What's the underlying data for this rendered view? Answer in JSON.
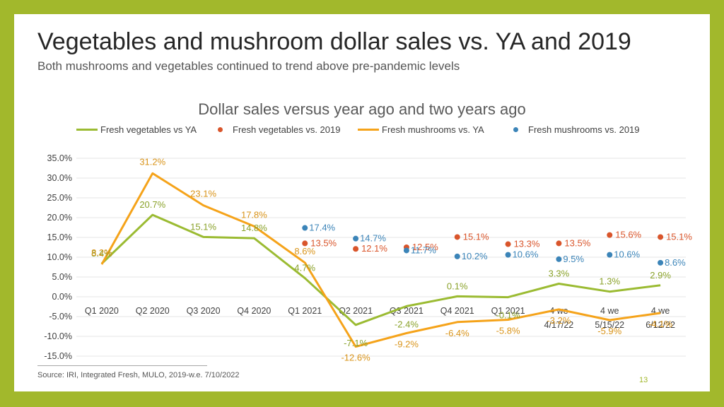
{
  "slide": {
    "title": "Vegetables and mushroom dollar sales vs. YA and 2019",
    "subtitle": "Both mushrooms and vegetables continued to trend above pre-pandemic levels",
    "source": "Source: IRI, Integrated Fresh, MULO, 2019-w.e. 7/10/2022",
    "page_number": "13"
  },
  "chart_data": {
    "type": "line",
    "title": "Dollar sales versus year ago and two years ago",
    "legend_position": "top",
    "grid": true,
    "ylim": [
      -15,
      35
    ],
    "y_ticks": [
      "35.0%",
      "30.0%",
      "25.0%",
      "20.0%",
      "15.0%",
      "10.0%",
      "5.0%",
      "0.0%",
      "-5.0%",
      "-10.0%",
      "-15.0%"
    ],
    "categories": [
      [
        "Q1 2020"
      ],
      [
        "Q2 2020"
      ],
      [
        "Q3 2020"
      ],
      [
        "Q4 2020"
      ],
      [
        "Q1 2021"
      ],
      [
        "Q2 2021"
      ],
      [
        "Q3 2021"
      ],
      [
        "Q4 2021"
      ],
      [
        "Q1 2021"
      ],
      [
        "4 we",
        "4/17/22"
      ],
      [
        "4 we",
        "5/15/22"
      ],
      [
        "4 we",
        "6/12/22"
      ]
    ],
    "series": [
      {
        "name": "Fresh vegetables vs YA",
        "kind": "line",
        "color": "#9bbb32",
        "label_color": "#8aa22a",
        "values": [
          8.4,
          20.7,
          15.1,
          14.8,
          4.7,
          -7.1,
          -2.4,
          0.1,
          -0.1,
          3.3,
          1.3,
          2.9
        ],
        "labels": [
          "8.4%",
          "20.7%",
          "15.1%",
          "14.8%",
          "4.7%",
          "-7.1%",
          "-2.4%",
          "0.1%",
          "-0.1%",
          "3.3%",
          "1.3%",
          "2.9%"
        ]
      },
      {
        "name": "Fresh vegetables vs. 2019",
        "kind": "dot",
        "color": "#d9552b",
        "label_color": "#d9552b",
        "values": [
          null,
          null,
          null,
          null,
          13.5,
          12.1,
          12.5,
          15.1,
          13.3,
          13.5,
          15.6,
          15.1
        ],
        "labels": [
          "",
          "",
          "",
          "",
          "13.5%",
          "12.1%",
          "12.5%",
          "15.1%",
          "13.3%",
          "13.5%",
          "15.6%",
          "15.1%"
        ]
      },
      {
        "name": "Fresh mushrooms vs. YA",
        "kind": "line",
        "color": "#f5a31a",
        "label_color": "#d9941a",
        "values": [
          8.2,
          31.2,
          23.1,
          17.8,
          8.6,
          -12.6,
          -9.2,
          -6.4,
          -5.8,
          -3.2,
          -5.9,
          -4.1
        ],
        "labels": [
          "8.2%",
          "31.2%",
          "23.1%",
          "17.8%",
          "8.6%",
          "-12.6%",
          "-9.2%",
          "-6.4%",
          "-5.8%",
          "-3.2%",
          "-5.9%",
          "-4.1%"
        ]
      },
      {
        "name": "Fresh mushrooms vs. 2019",
        "kind": "dot",
        "color": "#3b84b8",
        "label_color": "#3b84b8",
        "values": [
          null,
          null,
          null,
          null,
          17.4,
          14.7,
          11.7,
          10.2,
          10.6,
          9.5,
          10.6,
          8.6
        ],
        "labels": [
          "",
          "",
          "",
          "",
          "17.4%",
          "14.7%",
          "11.7%",
          "10.2%",
          "10.6%",
          "9.5%",
          "10.6%",
          "8.6%"
        ]
      }
    ]
  }
}
